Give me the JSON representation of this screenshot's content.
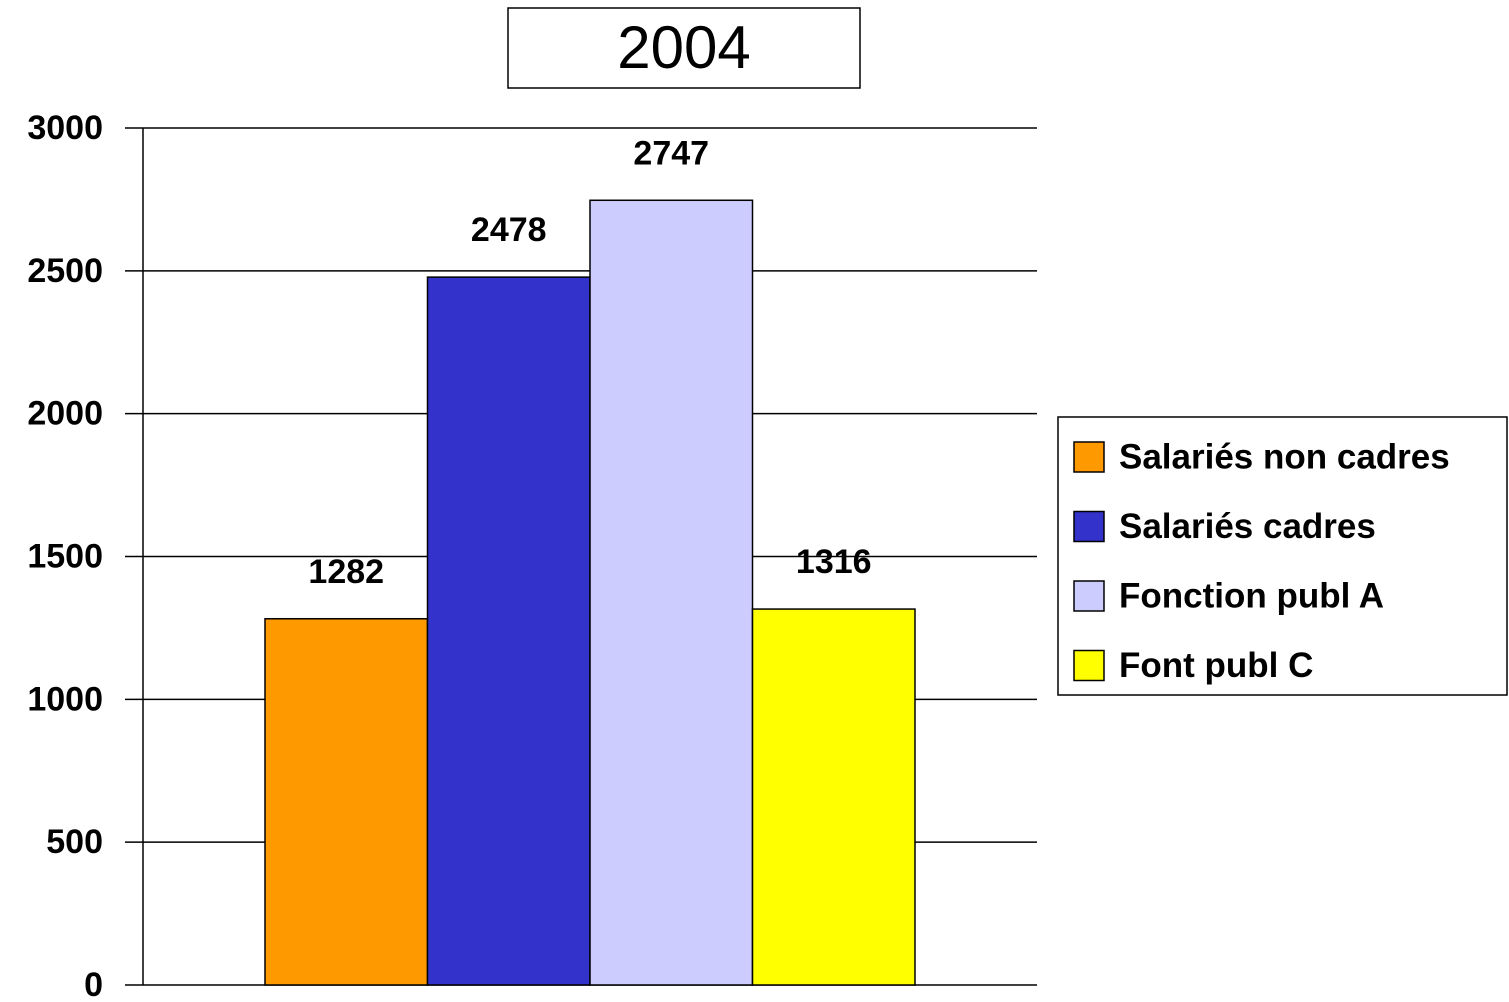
{
  "chart_data": {
    "type": "bar",
    "title": "2004",
    "categories": [
      null
    ],
    "series": [
      {
        "name": "Salariés non cadres",
        "color": "#ff9900",
        "values": [
          1282
        ]
      },
      {
        "name": "Salariés cadres",
        "color": "#3333cc",
        "values": [
          2478
        ]
      },
      {
        "name": "Fonction publ A",
        "color": "#ccccff",
        "values": [
          2747
        ]
      },
      {
        "name": "Font publ C",
        "color": "#ffff00",
        "values": [
          1316
        ]
      }
    ],
    "ylim": [
      0,
      3000
    ],
    "yticks": [
      0,
      500,
      1000,
      1500,
      2000,
      2500,
      3000
    ],
    "grid": true,
    "legend": "right"
  }
}
